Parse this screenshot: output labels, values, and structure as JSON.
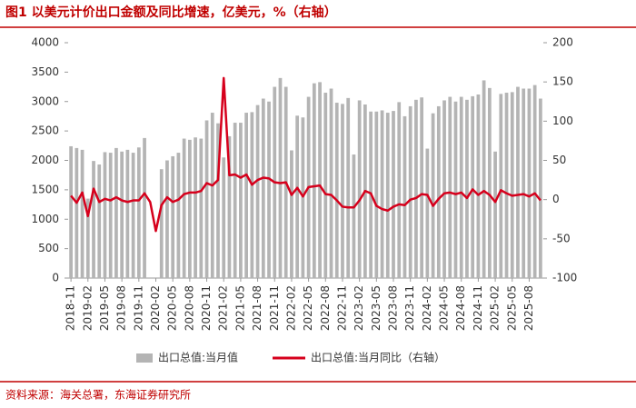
{
  "chart_data": {
    "type": "bar-line",
    "title": "图1  以美元计价出口金额及同比增速，亿美元，%（右轴）",
    "source": "资料来源：海关总署，东海证券研究所",
    "categories": [
      "2018-11",
      null,
      null,
      "2019-02",
      null,
      null,
      "2019-05",
      null,
      null,
      "2019-08",
      null,
      null,
      "2019-11",
      null,
      null,
      "2020-02",
      null,
      null,
      "2020-05",
      null,
      null,
      "2020-08",
      null,
      null,
      "2020-11",
      null,
      null,
      "2021-02",
      null,
      null,
      "2021-05",
      null,
      null,
      "2021-08",
      null,
      null,
      "2021-11",
      null,
      null,
      "2022-02",
      null,
      null,
      "2022-05",
      null,
      null,
      "2022-08",
      null,
      null,
      "2022-11",
      null,
      null,
      "2023-02",
      null,
      null,
      "2023-05",
      null,
      null,
      "2023-08",
      null,
      null,
      "2023-11",
      null,
      null,
      "2024-02",
      null,
      null,
      "2024-05",
      null,
      null,
      "2024-08",
      null,
      null,
      "2024-11",
      null,
      null,
      "2025-02",
      null,
      null,
      "2025-05",
      null,
      null,
      "2025-08",
      null,
      null
    ],
    "series": [
      {
        "name": "出口总值:当月值",
        "color": "#b4b4b4",
        "kind": "bar",
        "values": [
          2240,
          2210,
          2180,
          1350,
          1990,
          1930,
          2140,
          2130,
          2210,
          2150,
          2180,
          2130,
          2220,
          2380,
          null,
          null,
          1850,
          2000,
          2070,
          2130,
          2370,
          2350,
          2390,
          2370,
          2680,
          2810,
          2630,
          2050,
          2410,
          2640,
          2640,
          2810,
          2820,
          2940,
          3050,
          3000,
          3250,
          3400,
          3250,
          2170,
          2760,
          2730,
          3080,
          3310,
          3330,
          3150,
          3220,
          2980,
          2960,
          3060,
          2100,
          3020,
          2950,
          2830,
          2830,
          2850,
          2810,
          2840,
          2990,
          2750,
          2920,
          3030,
          3070,
          2200,
          2800,
          2920,
          3020,
          3080,
          3000,
          3080,
          3030,
          3090,
          3120,
          3360,
          3230,
          2150,
          3130,
          3150,
          3160,
          3250,
          3220,
          3220,
          3280,
          3050
        ]
      },
      {
        "name": "出口总值:当月同比（右轴）",
        "color": "#d6001c",
        "kind": "line",
        "axis": "y2",
        "values": [
          5,
          -4,
          9,
          -21,
          14,
          -3,
          1,
          -1,
          3,
          -1,
          -3,
          -1,
          -1,
          8,
          -3,
          -40,
          -7,
          3,
          -3,
          0,
          7,
          9,
          9,
          11,
          21,
          18,
          25,
          155,
          31,
          32,
          28,
          32,
          19,
          25,
          28,
          27,
          22,
          21,
          22,
          6,
          15,
          4,
          16,
          17,
          18,
          7,
          6,
          -1,
          -9,
          -10,
          -10,
          -1,
          11,
          8,
          -8,
          -12,
          -14,
          -9,
          -6,
          -7,
          0,
          2,
          7,
          6,
          -8,
          1,
          8,
          9,
          7,
          9,
          2,
          13,
          6,
          11,
          6,
          -3,
          12,
          8,
          5,
          6,
          7,
          4,
          8,
          -1
        ]
      }
    ],
    "ylim": [
      0,
      4000
    ],
    "yticks": [
      0,
      500,
      1000,
      1500,
      2000,
      2500,
      3000,
      3500,
      4000
    ],
    "y2lim": [
      -100,
      200
    ],
    "y2ticks": [
      -100,
      -50,
      0,
      50,
      100,
      150,
      200
    ]
  }
}
